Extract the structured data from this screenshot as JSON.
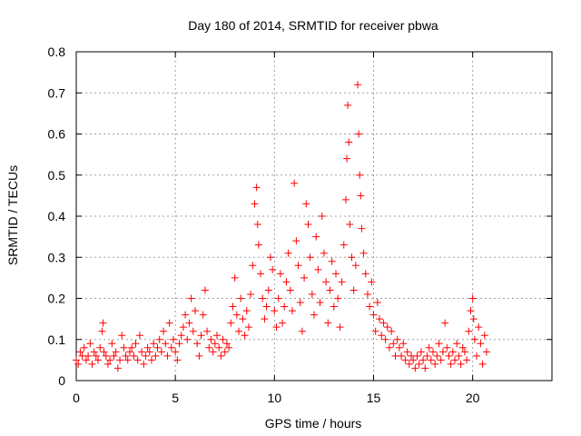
{
  "chart_data": {
    "type": "scatter",
    "title": "Day 180 of 2014, SRMTID for receiver pbwa",
    "xlabel": "GPS time / hours",
    "ylabel": "SRMTID / TECUs",
    "xlim": [
      0,
      24
    ],
    "ylim": [
      0,
      0.8
    ],
    "xticks": [
      0,
      5,
      10,
      15,
      20
    ],
    "xtick_labels": [
      "0",
      "5",
      "10",
      "15",
      "20"
    ],
    "yticks": [
      0,
      0.1,
      0.2,
      0.3,
      0.4,
      0.5,
      0.6,
      0.7,
      0.8
    ],
    "ytick_labels": [
      "0",
      "0.1",
      "0.2",
      "0.3",
      "0.4",
      "0.5",
      "0.6",
      "0.7",
      "0.8"
    ],
    "grid": true,
    "legend": "none",
    "marker": "+",
    "color": "#ff0000",
    "series": [
      {
        "name": "SRMTID",
        "points": [
          [
            0.0,
            0.05
          ],
          [
            0.1,
            0.04
          ],
          [
            0.2,
            0.07
          ],
          [
            0.3,
            0.06
          ],
          [
            0.4,
            0.08
          ],
          [
            0.5,
            0.05
          ],
          [
            0.6,
            0.06
          ],
          [
            0.7,
            0.09
          ],
          [
            0.8,
            0.04
          ],
          [
            0.9,
            0.07
          ],
          [
            1.0,
            0.06
          ],
          [
            1.1,
            0.05
          ],
          [
            1.2,
            0.08
          ],
          [
            1.3,
            0.12
          ],
          [
            1.35,
            0.14
          ],
          [
            1.4,
            0.07
          ],
          [
            1.5,
            0.06
          ],
          [
            1.6,
            0.04
          ],
          [
            1.7,
            0.05
          ],
          [
            1.8,
            0.09
          ],
          [
            1.9,
            0.06
          ],
          [
            2.0,
            0.07
          ],
          [
            2.1,
            0.03
          ],
          [
            2.2,
            0.05
          ],
          [
            2.3,
            0.11
          ],
          [
            2.4,
            0.08
          ],
          [
            2.5,
            0.06
          ],
          [
            2.6,
            0.05
          ],
          [
            2.7,
            0.07
          ],
          [
            2.8,
            0.08
          ],
          [
            2.9,
            0.06
          ],
          [
            3.0,
            0.09
          ],
          [
            3.1,
            0.05
          ],
          [
            3.2,
            0.11
          ],
          [
            3.3,
            0.07
          ],
          [
            3.4,
            0.04
          ],
          [
            3.5,
            0.06
          ],
          [
            3.6,
            0.08
          ],
          [
            3.7,
            0.07
          ],
          [
            3.8,
            0.05
          ],
          [
            3.9,
            0.09
          ],
          [
            4.0,
            0.06
          ],
          [
            4.1,
            0.08
          ],
          [
            4.2,
            0.1
          ],
          [
            4.3,
            0.07
          ],
          [
            4.4,
            0.12
          ],
          [
            4.5,
            0.09
          ],
          [
            4.6,
            0.06
          ],
          [
            4.7,
            0.14
          ],
          [
            4.8,
            0.08
          ],
          [
            4.9,
            0.1
          ],
          [
            5.0,
            0.07
          ],
          [
            5.1,
            0.05
          ],
          [
            5.2,
            0.09
          ],
          [
            5.3,
            0.11
          ],
          [
            5.4,
            0.13
          ],
          [
            5.5,
            0.16
          ],
          [
            5.6,
            0.1
          ],
          [
            5.7,
            0.14
          ],
          [
            5.8,
            0.2
          ],
          [
            5.9,
            0.12
          ],
          [
            6.0,
            0.17
          ],
          [
            6.1,
            0.09
          ],
          [
            6.2,
            0.06
          ],
          [
            6.3,
            0.11
          ],
          [
            6.4,
            0.16
          ],
          [
            6.5,
            0.22
          ],
          [
            6.6,
            0.12
          ],
          [
            6.7,
            0.08
          ],
          [
            6.8,
            0.1
          ],
          [
            6.9,
            0.07
          ],
          [
            7.0,
            0.09
          ],
          [
            7.1,
            0.11
          ],
          [
            7.2,
            0.08
          ],
          [
            7.3,
            0.06
          ],
          [
            7.4,
            0.1
          ],
          [
            7.5,
            0.07
          ],
          [
            7.6,
            0.09
          ],
          [
            7.7,
            0.08
          ],
          [
            7.8,
            0.14
          ],
          [
            7.9,
            0.18
          ],
          [
            8.0,
            0.25
          ],
          [
            8.1,
            0.16
          ],
          [
            8.2,
            0.12
          ],
          [
            8.3,
            0.2
          ],
          [
            8.4,
            0.15
          ],
          [
            8.5,
            0.11
          ],
          [
            8.6,
            0.17
          ],
          [
            8.7,
            0.13
          ],
          [
            8.8,
            0.21
          ],
          [
            8.9,
            0.28
          ],
          [
            9.0,
            0.43
          ],
          [
            9.1,
            0.47
          ],
          [
            9.15,
            0.38
          ],
          [
            9.2,
            0.33
          ],
          [
            9.3,
            0.26
          ],
          [
            9.4,
            0.2
          ],
          [
            9.5,
            0.15
          ],
          [
            9.6,
            0.18
          ],
          [
            9.7,
            0.22
          ],
          [
            9.8,
            0.3
          ],
          [
            9.9,
            0.27
          ],
          [
            10.0,
            0.17
          ],
          [
            10.1,
            0.13
          ],
          [
            10.2,
            0.2
          ],
          [
            10.3,
            0.26
          ],
          [
            10.4,
            0.14
          ],
          [
            10.5,
            0.18
          ],
          [
            10.6,
            0.24
          ],
          [
            10.7,
            0.31
          ],
          [
            10.8,
            0.22
          ],
          [
            10.9,
            0.17
          ],
          [
            11.0,
            0.48
          ],
          [
            11.1,
            0.34
          ],
          [
            11.2,
            0.28
          ],
          [
            11.3,
            0.19
          ],
          [
            11.4,
            0.12
          ],
          [
            11.5,
            0.25
          ],
          [
            11.6,
            0.43
          ],
          [
            11.7,
            0.38
          ],
          [
            11.8,
            0.3
          ],
          [
            11.9,
            0.21
          ],
          [
            12.0,
            0.16
          ],
          [
            12.1,
            0.35
          ],
          [
            12.2,
            0.27
          ],
          [
            12.3,
            0.19
          ],
          [
            12.4,
            0.4
          ],
          [
            12.5,
            0.31
          ],
          [
            12.6,
            0.24
          ],
          [
            12.7,
            0.14
          ],
          [
            12.8,
            0.22
          ],
          [
            12.9,
            0.29
          ],
          [
            13.0,
            0.18
          ],
          [
            13.1,
            0.26
          ],
          [
            13.2,
            0.2
          ],
          [
            13.3,
            0.13
          ],
          [
            13.4,
            0.24
          ],
          [
            13.5,
            0.33
          ],
          [
            13.6,
            0.44
          ],
          [
            13.65,
            0.54
          ],
          [
            13.7,
            0.67
          ],
          [
            13.75,
            0.58
          ],
          [
            13.8,
            0.38
          ],
          [
            13.9,
            0.3
          ],
          [
            14.0,
            0.22
          ],
          [
            14.1,
            0.28
          ],
          [
            14.2,
            0.72
          ],
          [
            14.25,
            0.6
          ],
          [
            14.3,
            0.5
          ],
          [
            14.35,
            0.45
          ],
          [
            14.4,
            0.37
          ],
          [
            14.5,
            0.31
          ],
          [
            14.6,
            0.26
          ],
          [
            14.7,
            0.21
          ],
          [
            14.8,
            0.18
          ],
          [
            14.9,
            0.24
          ],
          [
            15.0,
            0.16
          ],
          [
            15.1,
            0.12
          ],
          [
            15.2,
            0.19
          ],
          [
            15.3,
            0.15
          ],
          [
            15.4,
            0.11
          ],
          [
            15.5,
            0.14
          ],
          [
            15.6,
            0.1
          ],
          [
            15.7,
            0.13
          ],
          [
            15.8,
            0.08
          ],
          [
            15.9,
            0.12
          ],
          [
            16.0,
            0.09
          ],
          [
            16.1,
            0.06
          ],
          [
            16.2,
            0.1
          ],
          [
            16.3,
            0.08
          ],
          [
            16.4,
            0.06
          ],
          [
            16.5,
            0.09
          ],
          [
            16.6,
            0.05
          ],
          [
            16.7,
            0.07
          ],
          [
            16.8,
            0.04
          ],
          [
            16.9,
            0.06
          ],
          [
            17.0,
            0.05
          ],
          [
            17.1,
            0.03
          ],
          [
            17.2,
            0.06
          ],
          [
            17.3,
            0.04
          ],
          [
            17.4,
            0.07
          ],
          [
            17.5,
            0.05
          ],
          [
            17.6,
            0.03
          ],
          [
            17.7,
            0.06
          ],
          [
            17.8,
            0.08
          ],
          [
            17.9,
            0.05
          ],
          [
            18.0,
            0.07
          ],
          [
            18.1,
            0.04
          ],
          [
            18.2,
            0.06
          ],
          [
            18.3,
            0.09
          ],
          [
            18.4,
            0.05
          ],
          [
            18.5,
            0.07
          ],
          [
            18.6,
            0.14
          ],
          [
            18.7,
            0.08
          ],
          [
            18.8,
            0.06
          ],
          [
            18.9,
            0.04
          ],
          [
            19.0,
            0.07
          ],
          [
            19.1,
            0.05
          ],
          [
            19.2,
            0.09
          ],
          [
            19.3,
            0.06
          ],
          [
            19.4,
            0.04
          ],
          [
            19.5,
            0.08
          ],
          [
            19.6,
            0.07
          ],
          [
            19.7,
            0.05
          ],
          [
            19.8,
            0.12
          ],
          [
            19.9,
            0.17
          ],
          [
            20.0,
            0.2
          ],
          [
            20.05,
            0.15
          ],
          [
            20.1,
            0.1
          ],
          [
            20.2,
            0.06
          ],
          [
            20.3,
            0.13
          ],
          [
            20.4,
            0.09
          ],
          [
            20.5,
            0.04
          ],
          [
            20.6,
            0.11
          ],
          [
            20.7,
            0.07
          ]
        ]
      }
    ]
  }
}
